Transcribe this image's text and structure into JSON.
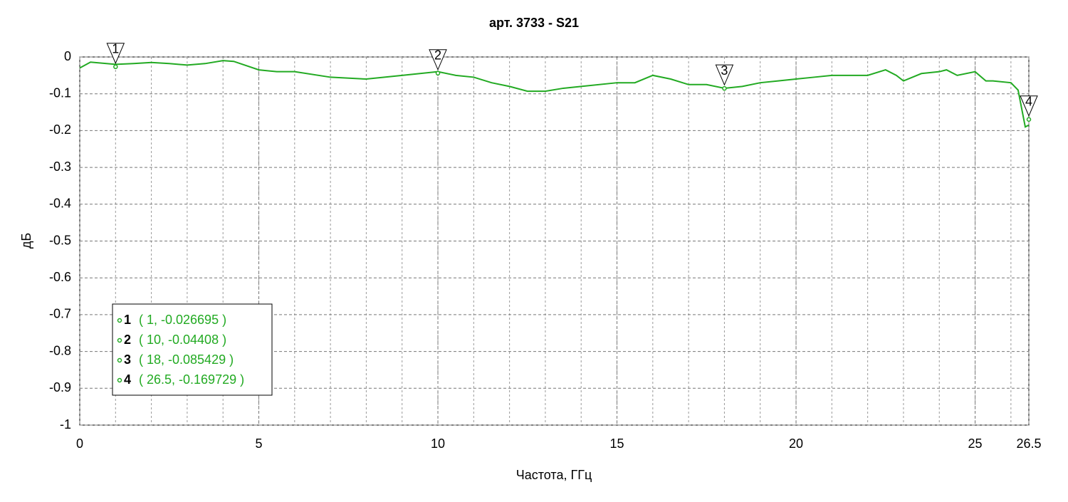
{
  "chart_data": {
    "type": "line",
    "title": "арт. 3733 - S21",
    "x_label": "Частота, ГГц",
    "y_label": "дБ",
    "xlim": [
      0,
      26.5
    ],
    "xticks": [
      0,
      5,
      10,
      15,
      20,
      25,
      26.5
    ],
    "xgrid": [
      1,
      2,
      3,
      4,
      5,
      6,
      7,
      8,
      9,
      10,
      11,
      12,
      13,
      14,
      15,
      16,
      17,
      18,
      19,
      20,
      21,
      22,
      23,
      24,
      25,
      26
    ],
    "ylim": [
      -1,
      0
    ],
    "yticks": [
      0,
      -0.1,
      -0.2,
      -0.3,
      -0.4,
      -0.5,
      -0.6,
      -0.7,
      -0.8,
      -0.9,
      -1
    ],
    "grid": true,
    "series": [
      {
        "color": "#22aa22",
        "x": [
          0,
          0.3,
          1,
          1.5,
          2,
          2.5,
          3,
          3.5,
          4,
          4.3,
          5,
          5.5,
          6,
          7,
          8,
          9,
          10,
          10.5,
          11,
          11.5,
          12,
          12.5,
          13,
          13.5,
          14,
          15,
          15.5,
          16,
          16.5,
          17,
          17.5,
          18,
          18.5,
          19,
          19.5,
          20,
          20.5,
          21,
          21.5,
          22,
          22.5,
          22.8,
          23,
          23.5,
          24,
          24.2,
          24.5,
          25,
          25.3,
          25.5,
          26,
          26.2,
          26.3,
          26.4,
          26.5
        ],
        "values": [
          -0.03,
          -0.014,
          -0.02,
          -0.018,
          -0.015,
          -0.018,
          -0.022,
          -0.018,
          -0.01,
          -0.012,
          -0.035,
          -0.04,
          -0.04,
          -0.055,
          -0.06,
          -0.05,
          -0.04,
          -0.05,
          -0.055,
          -0.07,
          -0.08,
          -0.093,
          -0.093,
          -0.085,
          -0.08,
          -0.07,
          -0.07,
          -0.05,
          -0.06,
          -0.075,
          -0.075,
          -0.085,
          -0.08,
          -0.07,
          -0.065,
          -0.06,
          -0.055,
          -0.05,
          -0.05,
          -0.05,
          -0.035,
          -0.05,
          -0.065,
          -0.045,
          -0.04,
          -0.035,
          -0.05,
          -0.04,
          -0.065,
          -0.065,
          -0.07,
          -0.09,
          -0.14,
          -0.19,
          -0.185
        ]
      }
    ],
    "markers": [
      {
        "name": "1",
        "x": 1,
        "y": -0.026695,
        "label": "( 1, -0.026695 )"
      },
      {
        "name": "2",
        "x": 10,
        "y": -0.04408,
        "label": "( 10, -0.04408 )"
      },
      {
        "name": "3",
        "x": 18,
        "y": -0.085429,
        "label": "( 18, -0.085429 )"
      },
      {
        "name": "4",
        "x": 26.5,
        "y": -0.169729,
        "label": "( 26.5, -0.169729 )"
      }
    ]
  }
}
